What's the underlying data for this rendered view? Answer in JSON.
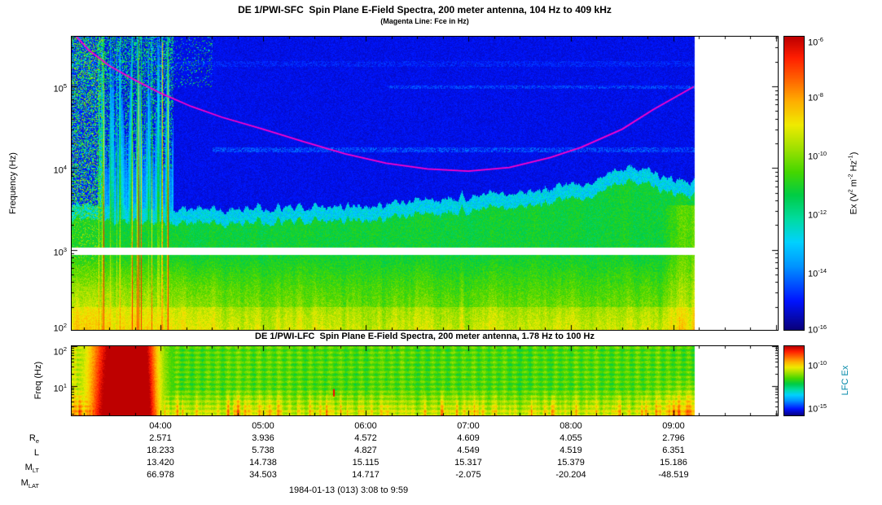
{
  "colors": {
    "background": "#ffffff",
    "plot_frame": "#000000",
    "fce_line": "#ff00cc",
    "lfc_label": "#0088a8",
    "marker": "#ff0000"
  },
  "chart_data": [
    {
      "type": "heatmap",
      "panel": "top",
      "instrument": "DE 1/PWI-SFC",
      "title": "DE 1/PWI-SFC  Spin Plane E-Field Spectra, 200 meter antenna, 104 Hz to 409 kHz",
      "subtitle": "(Magenta Line: Fce in Hz)",
      "ylabel": "Frequency (Hz)",
      "x_axis": {
        "start_hour": 3.1333,
        "end_hour": 10.0167,
        "data_end_hour": 9.2,
        "tick_hours": [
          4,
          5,
          6,
          7,
          8,
          9
        ]
      },
      "y_axis": {
        "scale": "log",
        "min_hz": 104,
        "max_hz": 409000,
        "ticks": [
          {
            "base": "10",
            "exp": "5"
          },
          {
            "base": "10",
            "exp": "4"
          },
          {
            "base": "10",
            "exp": "3"
          },
          {
            "base": "10",
            "exp": "2"
          }
        ]
      },
      "z_axis": {
        "scale": "log",
        "min_exp": -16,
        "max_exp": -6,
        "ticks": [
          {
            "base": "10",
            "exp": "-6"
          },
          {
            "base": "10",
            "exp": "-8"
          },
          {
            "base": "10",
            "exp": "-10"
          },
          {
            "base": "10",
            "exp": "-12"
          },
          {
            "base": "10",
            "exp": "-14"
          },
          {
            "base": "10",
            "exp": "-16"
          }
        ],
        "unit_label": {
          "pre": "Ex (V",
          "e1": "2",
          "m1": " m",
          "e2": "-2",
          "m2": " Hz",
          "e3": "-1",
          "post": ")"
        }
      },
      "fce_line": {
        "color": "#ff00cc",
        "points_hour_hz": [
          [
            3.18,
            409000
          ],
          [
            3.3,
            280000
          ],
          [
            3.5,
            180000
          ],
          [
            3.75,
            120000
          ],
          [
            4,
            83000
          ],
          [
            4.3,
            57000
          ],
          [
            4.6,
            42000
          ],
          [
            5,
            30000
          ],
          [
            5.4,
            21000
          ],
          [
            5.8,
            15000
          ],
          [
            6.2,
            11500
          ],
          [
            6.6,
            9800
          ],
          [
            7,
            9200
          ],
          [
            7.4,
            10200
          ],
          [
            7.8,
            13500
          ],
          [
            8.1,
            18000
          ],
          [
            8.5,
            30000
          ],
          [
            8.8,
            52000
          ],
          [
            9,
            72000
          ],
          [
            9.2,
            100000
          ]
        ]
      },
      "features": {
        "white_band_hz": [
          880,
          1070
        ],
        "burst_hours": [
          3.38,
          4.12
        ],
        "speckle_until_hour": 3.45,
        "green_cutoff_hour_hz": [
          [
            3.15,
            2600
          ],
          [
            4.2,
            2300
          ],
          [
            5,
            2500
          ],
          [
            5.6,
            2400
          ],
          [
            6.2,
            2700
          ],
          [
            6.8,
            3100
          ],
          [
            7.3,
            3500
          ],
          [
            7.8,
            4100
          ],
          [
            8.2,
            4800
          ],
          [
            8.5,
            7500
          ],
          [
            8.75,
            6800
          ],
          [
            9,
            5200
          ],
          [
            9.2,
            5400
          ]
        ],
        "right_patch_from_hour": 8.85
      }
    },
    {
      "type": "heatmap",
      "panel": "bottom",
      "instrument": "DE 1/PWI-LFC",
      "title": "DE 1/PWI-LFC  Spin Plane E-Field Spectra, 200 meter antenna, 1.78 Hz to 100 Hz",
      "ylabel": "Freq (Hz)",
      "y_axis": {
        "scale": "log",
        "min_hz": 1.78,
        "max_hz": 100,
        "ticks": [
          {
            "base": "10",
            "exp": "2"
          },
          {
            "base": "10",
            "exp": "1"
          }
        ]
      },
      "z_axis": {
        "scale": "log",
        "min_exp": -16,
        "max_exp": -8,
        "ticks": [
          {
            "base": "10",
            "exp": "-10"
          },
          {
            "base": "10",
            "exp": "-15"
          }
        ],
        "unit_label": "LFC Ex",
        "label_color": "#0088a8"
      },
      "features": {
        "blob_peak_hour": 3.55,
        "blob_hours": [
          3.25,
          4.05
        ],
        "bottom_band_max_hz": 9,
        "right_enhancement_from_hour": 8.7,
        "early_enhancement_until_hour": 3.45,
        "marker": {
          "hour": 5.69,
          "hz": 6.8,
          "color": "#ff0000"
        }
      }
    },
    {
      "type": "table",
      "name": "orbit-ephemeris",
      "time_labels": [
        "04:00",
        "05:00",
        "06:00",
        "07:00",
        "08:00",
        "09:00"
      ],
      "rows": [
        {
          "label_base": "R",
          "label_sub": "e",
          "values": [
            "2.571",
            "3.936",
            "4.572",
            "4.609",
            "4.055",
            "2.796"
          ]
        },
        {
          "label_base": "L",
          "label_sub": "",
          "values": [
            "18.233",
            "5.738",
            "4.827",
            "4.549",
            "4.519",
            "6.351"
          ]
        },
        {
          "label_base": "M",
          "label_sub": "LT",
          "values": [
            "13.420",
            "14.738",
            "15.115",
            "15.317",
            "15.379",
            "15.186"
          ]
        },
        {
          "label_base": "M",
          "label_sub": "LAT",
          "values": [
            "66.978",
            "34.503",
            "14.717",
            "-2.075",
            "-20.204",
            "-48.519"
          ]
        }
      ],
      "footer": "1984-01-13 (013) 3:08 to 9:59"
    }
  ]
}
